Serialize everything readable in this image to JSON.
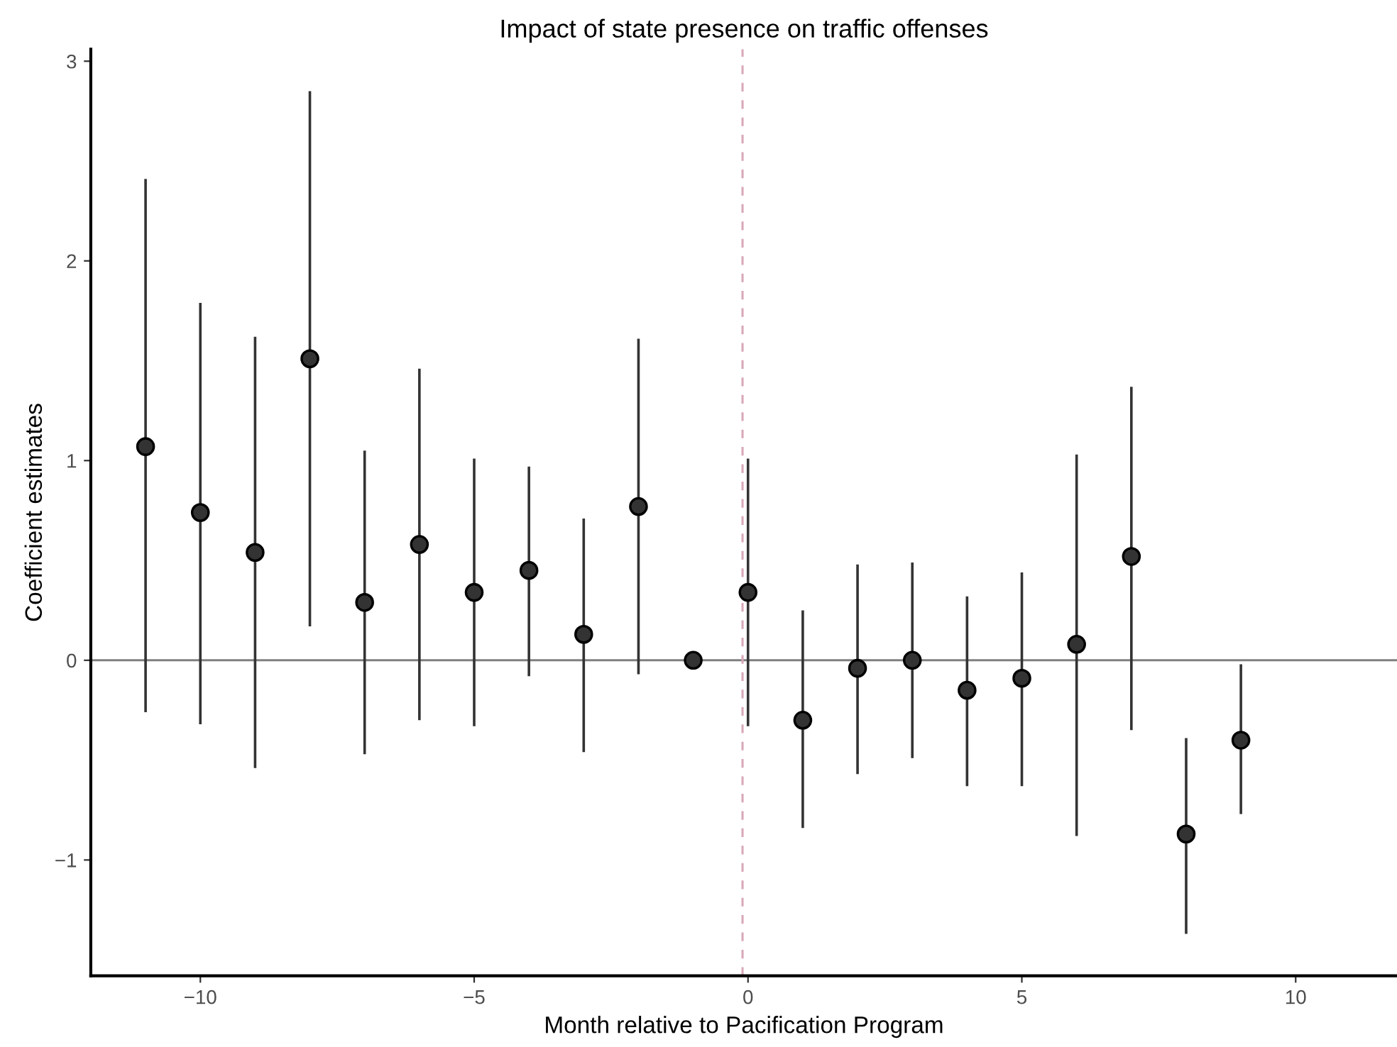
{
  "chart_data": {
    "type": "scatter",
    "title": "Impact of state presence on traffic offenses",
    "xlabel": "Month relative to Pacification Program",
    "ylabel": "Coefficient estimates",
    "x": [
      -11,
      -10,
      -9,
      -8,
      -7,
      -6,
      -5,
      -4,
      -3,
      -2,
      -1,
      0,
      1,
      2,
      3,
      4,
      5,
      6,
      7,
      8,
      9
    ],
    "series": [
      {
        "color": "#333333",
        "values": [
          1.07,
          0.74,
          0.54,
          1.51,
          0.29,
          0.58,
          0.34,
          0.45,
          0.13,
          0.77,
          0,
          0.34,
          -0.3,
          -0.04,
          0,
          -0.15,
          -0.09,
          0.08,
          0.52,
          -0.87,
          -0.4
        ],
        "errors": [
          [
            -0.26,
            2.41
          ],
          [
            -0.32,
            1.79
          ],
          [
            -0.54,
            1.62
          ],
          [
            0.17,
            2.85
          ],
          [
            -0.47,
            1.05
          ],
          [
            -0.3,
            1.46
          ],
          [
            -0.33,
            1.01
          ],
          [
            -0.08,
            0.97
          ],
          [
            -0.46,
            0.71
          ],
          [
            -0.07,
            1.61
          ],
          null,
          [
            -0.33,
            1.01
          ],
          [
            -0.84,
            0.25
          ],
          [
            -0.57,
            0.48
          ],
          [
            -0.49,
            0.49
          ],
          [
            -0.63,
            0.32
          ],
          [
            -0.63,
            0.44
          ],
          [
            -0.88,
            1.03
          ],
          [
            -0.35,
            1.37
          ],
          [
            -1.37,
            -0.39
          ],
          [
            -0.77,
            -0.02
          ]
        ]
      }
    ],
    "xlim": [
      -12.0,
      11.85
    ],
    "ylim": [
      -1.58,
      3.06
    ],
    "xticks": [
      {
        "value": -10,
        "label": "−10"
      },
      {
        "value": -5,
        "label": "−5"
      },
      0,
      5,
      10
    ],
    "yticks": [
      {
        "value": -1,
        "label": "−1"
      },
      0,
      1,
      2,
      3
    ],
    "ref_lines": [
      {
        "axis": "y",
        "value": 0,
        "color": "#808080",
        "line_style": "solid"
      },
      {
        "axis": "x",
        "value": -0.1,
        "color": "#d8a8b8",
        "line_style": "dashed"
      }
    ],
    "marker": "circle",
    "grid": false,
    "legend": false
  }
}
